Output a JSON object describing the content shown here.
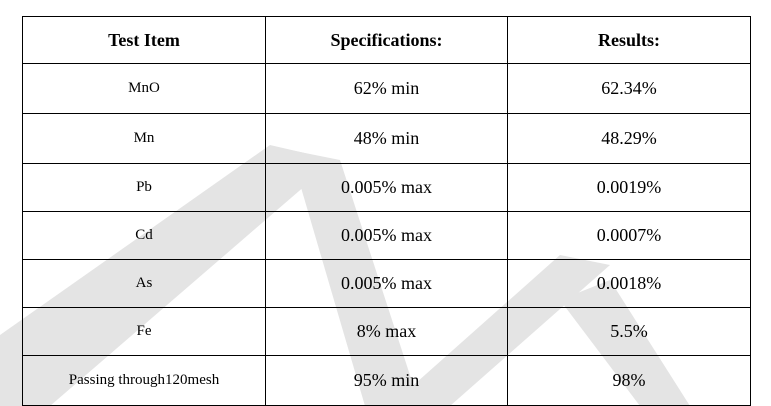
{
  "table": {
    "header": [
      "Test Item",
      "Specifications:",
      "Results:"
    ],
    "rows": [
      [
        "MnO",
        "62% min",
        "62.34%"
      ],
      [
        "Mn",
        "48% min",
        "48.29%"
      ],
      [
        "Pb",
        "0.005% max",
        "0.0019%"
      ],
      [
        "Cd",
        "0.005% max",
        "0.0007%"
      ],
      [
        "As",
        "0.005% max",
        "0.0018%"
      ],
      [
        "Fe",
        "8% max",
        "5.5%"
      ],
      [
        "Passing through120mesh",
        "95% min",
        "98%"
      ]
    ]
  }
}
